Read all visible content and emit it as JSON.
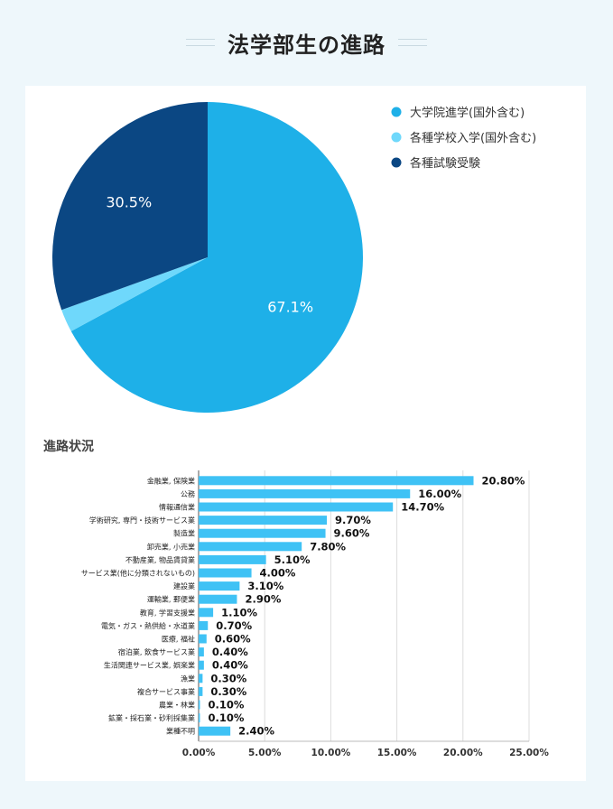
{
  "page": {
    "title": "法学部生の進路"
  },
  "colors": {
    "pie": [
      "#1eb0e8",
      "#6fd8fb",
      "#0b4783"
    ],
    "bar": "#3fc2f5"
  },
  "chart_data": [
    {
      "type": "pie",
      "title": "",
      "slices": [
        {
          "label": "大学院進学(国外含む)",
          "value": 67.1,
          "display": "67.1%"
        },
        {
          "label": "各種学校入学(国外含む)",
          "value": 2.4,
          "display": ""
        },
        {
          "label": "各種試験受験",
          "value": 30.5,
          "display": "30.5%"
        }
      ],
      "legend_position": "right"
    },
    {
      "type": "bar",
      "orientation": "horizontal",
      "title": "進路状況",
      "categories": [
        "金融業, 保険業",
        "公務",
        "情報通信業",
        "学術研究, 専門・技術サービス業",
        "製造業",
        "卸売業, 小売業",
        "不動産業, 物品賃貸業",
        "サービス業(他に分類されないもの)",
        "建設業",
        "運輸業, 郵便業",
        "教育, 学習支援業",
        "電気・ガス・熱供給・水道業",
        "医療, 福祉",
        "宿泊業, 飲食サービス業",
        "生活関連サービス業, 娯楽業",
        "漁業",
        "複合サービス事業",
        "農業・林業",
        "鉱業・採石業・砂利採集業",
        "業種不明"
      ],
      "values": [
        20.8,
        16.0,
        14.7,
        9.7,
        9.6,
        7.8,
        5.1,
        4.0,
        3.1,
        2.9,
        1.1,
        0.7,
        0.6,
        0.4,
        0.4,
        0.3,
        0.3,
        0.1,
        0.1,
        2.4
      ],
      "value_labels": [
        "20.80%",
        "16.00%",
        "14.70%",
        "9.70%",
        "9.60%",
        "7.80%",
        "5.10%",
        "4.00%",
        "3.10%",
        "2.90%",
        "1.10%",
        "0.70%",
        "0.60%",
        "0.40%",
        "0.40%",
        "0.30%",
        "0.30%",
        "0.10%",
        "0.10%",
        "2.40%"
      ],
      "xlim": [
        0,
        25
      ],
      "xticks": [
        0,
        5,
        10,
        15,
        20,
        25
      ],
      "xtick_labels": [
        "0.00%",
        "5.00%",
        "10.00%",
        "15.00%",
        "20.00%",
        "25.00%"
      ],
      "grid": true
    }
  ]
}
